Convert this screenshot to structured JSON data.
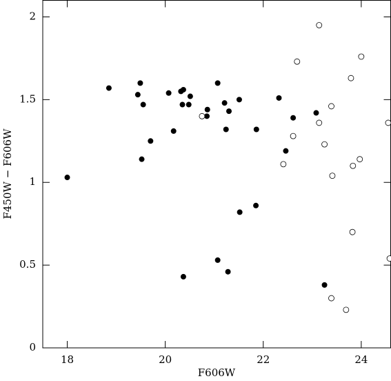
{
  "chart_data": {
    "type": "scatter",
    "x_label": "F606W",
    "y_label": "F450W − F606W",
    "xlim": [
      17.5,
      24.6
    ],
    "ylim": [
      0,
      2.1
    ],
    "xticks": [
      18,
      20,
      22,
      24
    ],
    "yticks": [
      0,
      0.5,
      1,
      1.5,
      2
    ],
    "series": [
      {
        "color": "#000000",
        "filled": true,
        "x": [
          18.0,
          18.85,
          19.44,
          19.49,
          19.55,
          19.52,
          19.7,
          20.07,
          20.17,
          20.32,
          20.37,
          20.35,
          20.51,
          20.48,
          20.86,
          20.85,
          21.07,
          21.21,
          21.24,
          21.3,
          21.51,
          21.86,
          22.32,
          22.61,
          23.08,
          22.46,
          21.52,
          21.85,
          21.07,
          21.28,
          20.37,
          23.25
        ],
        "values": [
          1.03,
          1.57,
          1.53,
          1.6,
          1.47,
          1.14,
          1.25,
          1.54,
          1.31,
          1.55,
          1.56,
          1.47,
          1.52,
          1.47,
          1.44,
          1.4,
          1.6,
          1.48,
          1.32,
          1.43,
          1.5,
          1.32,
          1.51,
          1.39,
          1.42,
          1.19,
          0.82,
          0.86,
          0.53,
          0.46,
          0.43,
          0.38
        ]
      },
      {
        "color": "#000000",
        "filled": false,
        "x": [
          20.75,
          23.14,
          22.69,
          24.0,
          23.79,
          23.39,
          23.14,
          22.61,
          23.25,
          22.41,
          23.41,
          23.83,
          23.97,
          23.82,
          24.55,
          24.58,
          23.39,
          23.69
        ],
        "values": [
          1.4,
          1.95,
          1.73,
          1.76,
          1.63,
          1.46,
          1.36,
          1.28,
          1.23,
          1.11,
          1.04,
          1.1,
          1.14,
          0.7,
          1.36,
          0.54,
          0.3,
          0.23
        ]
      }
    ]
  }
}
